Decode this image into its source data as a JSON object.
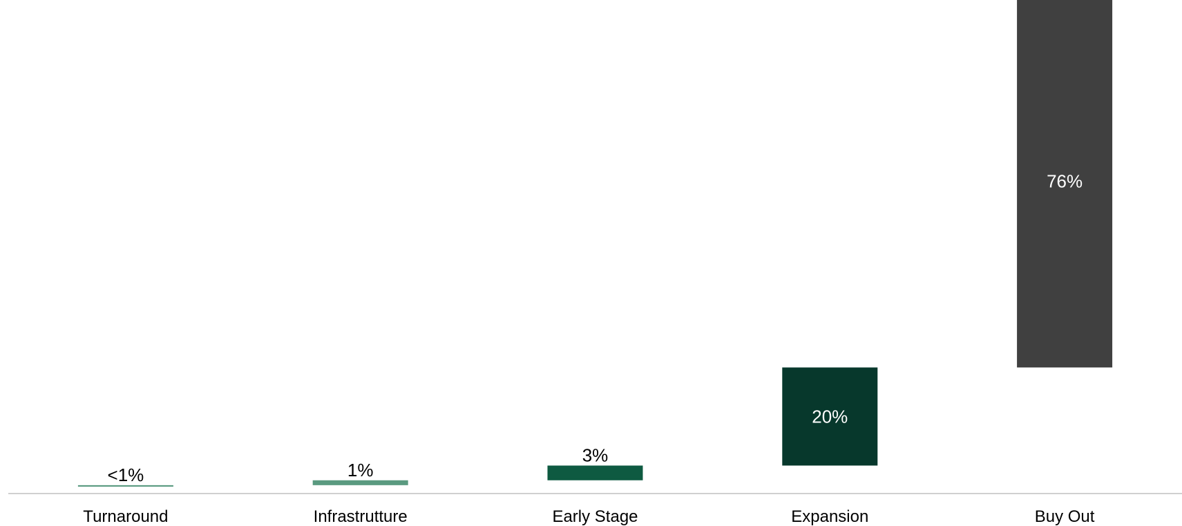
{
  "chart_data": {
    "type": "bar",
    "stacked": "waterfall",
    "categories": [
      "Turnaround",
      "Infrastrutture",
      "Early Stage",
      "Expansion",
      "Buy Out"
    ],
    "values": [
      0.3,
      1,
      3,
      20,
      76
    ],
    "data_labels": [
      "<1%",
      "1%",
      "3%",
      "20%",
      "76%"
    ],
    "colors": [
      "#5a9a80",
      "#5a9a80",
      "#0e5a41",
      "#07382c",
      "#404040"
    ],
    "label_colors": [
      "#000000",
      "#000000",
      "#000000",
      "#ffffff",
      "#ffffff"
    ],
    "label_inside": [
      false,
      false,
      false,
      true,
      true
    ],
    "unit": "%",
    "ylim": [
      0,
      100
    ],
    "grid": false,
    "legend": "none",
    "title": "",
    "xlabel": "",
    "ylabel": ""
  }
}
